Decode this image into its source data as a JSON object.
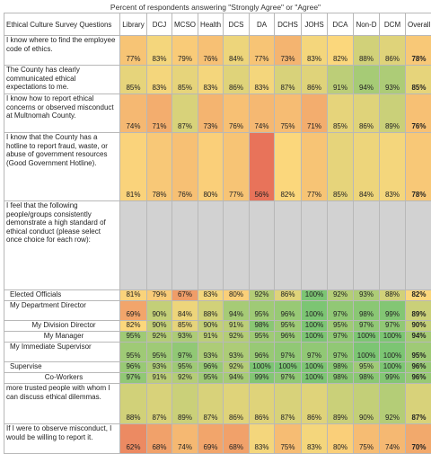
{
  "header_note": "Percent of respondents answering \"Strongly Agree\" or \"Agree\"",
  "colors": {
    "low": "#e8735a",
    "mid": "#fbd77c",
    "high": "#7cc573",
    "gray": "#d2d2d2"
  },
  "chart_data": {
    "type": "table",
    "title": "Percent of respondents answering \"Strongly Agree\" or \"Agree\"",
    "corner_label": "Ethical Culture Survey Questions",
    "columns": [
      "Library",
      "DCJ",
      "MCSO",
      "Health",
      "DCS",
      "DA",
      "DCHS",
      "JOHS",
      "DCA",
      "Non-D",
      "DCM",
      "Overall"
    ],
    "rows": [
      {
        "question": "I know where to find the employee code of ethics.",
        "values": [
          "77%",
          "83%",
          "79%",
          "76%",
          "84%",
          "77%",
          "73%",
          "83%",
          "82%",
          "88%",
          "86%",
          "78%"
        ]
      },
      {
        "question": "The County has clearly communicated ethical expectations to me.",
        "values": [
          "85%",
          "83%",
          "85%",
          "83%",
          "86%",
          "83%",
          "87%",
          "86%",
          "91%",
          "94%",
          "93%",
          "85%"
        ]
      },
      {
        "question": "I know how to report ethical concerns or observed misconduct at Multnomah County.",
        "values": [
          "74%",
          "71%",
          "87%",
          "73%",
          "76%",
          "74%",
          "75%",
          "71%",
          "85%",
          "86%",
          "89%",
          "76%"
        ]
      },
      {
        "question": "I know that the County has a hotline to report fraud, waste, or abuse of government resources (Good Government Hotline).",
        "values": [
          "81%",
          "78%",
          "76%",
          "80%",
          "77%",
          "56%",
          "82%",
          "77%",
          "85%",
          "84%",
          "83%",
          "78%"
        ]
      },
      {
        "question": "I feel that the following people/groups consistently demonstrate a high standard of ethical conduct (please select once choice for each row):",
        "values": [
          "",
          "",
          "",
          "",
          "",
          "",
          "",
          "",
          "",
          "",
          "",
          ""
        ]
      },
      {
        "question": "Elected Officials",
        "values": [
          "81%",
          "79%",
          "67%",
          "83%",
          "80%",
          "92%",
          "86%",
          "100%",
          "92%",
          "93%",
          "88%",
          "82%"
        ]
      },
      {
        "question": "My Department Director",
        "values": [
          "69%",
          "90%",
          "84%",
          "88%",
          "94%",
          "95%",
          "96%",
          "100%",
          "97%",
          "98%",
          "99%",
          "89%"
        ]
      },
      {
        "question": "My Division Director",
        "values": [
          "82%",
          "90%",
          "85%",
          "90%",
          "91%",
          "98%",
          "95%",
          "100%",
          "95%",
          "97%",
          "97%",
          "90%"
        ]
      },
      {
        "question": "My Manager",
        "values": [
          "95%",
          "92%",
          "93%",
          "91%",
          "92%",
          "95%",
          "96%",
          "100%",
          "97%",
          "100%",
          "100%",
          "94%"
        ]
      },
      {
        "question": "My Immediate Supervisor",
        "values": [
          "95%",
          "95%",
          "97%",
          "93%",
          "93%",
          "96%",
          "97%",
          "97%",
          "97%",
          "100%",
          "100%",
          "95%"
        ]
      },
      {
        "question": "Supervise",
        "values": [
          "96%",
          "93%",
          "95%",
          "96%",
          "92%",
          "100%",
          "100%",
          "100%",
          "98%",
          "95%",
          "100%",
          "96%"
        ]
      },
      {
        "question": "Co-Workers",
        "values": [
          "97%",
          "91%",
          "92%",
          "95%",
          "94%",
          "99%",
          "97%",
          "100%",
          "98%",
          "98%",
          "99%",
          "96%"
        ]
      },
      {
        "question": "more trusted people with whom I can discuss ethical dilemmas.",
        "values": [
          "88%",
          "87%",
          "89%",
          "87%",
          "86%",
          "86%",
          "87%",
          "86%",
          "89%",
          "90%",
          "92%",
          "87%"
        ]
      },
      {
        "question": "If I were to observe misconduct, I would be willing to report it.",
        "values": [
          "62%",
          "68%",
          "74%",
          "69%",
          "68%",
          "83%",
          "75%",
          "83%",
          "80%",
          "75%",
          "74%",
          "70%"
        ]
      }
    ]
  }
}
